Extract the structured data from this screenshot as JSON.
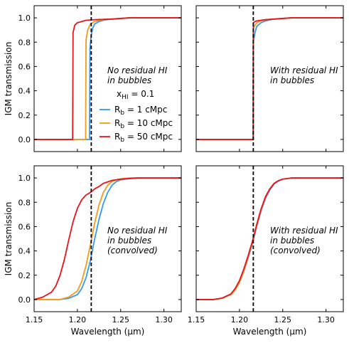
{
  "chart_data": [
    {
      "type": "line",
      "panel": "top-left",
      "xlim": [
        1.15,
        1.32
      ],
      "ylim": [
        -0.1,
        1.1
      ],
      "ylabel": "IGM transmission",
      "xlabel": "",
      "xticks": [],
      "yticks": [
        "0.0",
        "0.2",
        "0.4",
        "0.6",
        "0.8",
        "1.0"
      ],
      "vline_x": 1.216,
      "annotation": [
        "No residual HI",
        "in bubbles"
      ],
      "legend_title": "x",
      "legend_title_sub": "HI",
      "legend_title_value": " = 0.1",
      "legend_placement": "center-right",
      "series": [
        {
          "name": "1 cMpc",
          "label_prefix": "R",
          "label_sub": "b",
          "label_suffix": " = 1 cMpc",
          "color": "#3399ee",
          "x": [
            1.15,
            1.214,
            1.2145,
            1.216,
            1.218,
            1.22,
            1.225,
            1.23,
            1.24,
            1.26,
            1.32
          ],
          "y": [
            0.0,
            0.0,
            0.75,
            0.86,
            0.92,
            0.95,
            0.97,
            0.98,
            0.99,
            1.0,
            1.0
          ]
        },
        {
          "name": "10 cMpc",
          "label_prefix": "R",
          "label_sub": "b",
          "label_suffix": " = 10 cMpc",
          "color": "#f39a1c",
          "x": [
            1.15,
            1.2095,
            1.21,
            1.212,
            1.215,
            1.22,
            1.225,
            1.23,
            1.24,
            1.26,
            1.32
          ],
          "y": [
            0.0,
            0.0,
            0.82,
            0.9,
            0.95,
            0.97,
            0.98,
            0.985,
            0.99,
            1.0,
            1.0
          ]
        },
        {
          "name": "50 cMpc",
          "label_prefix": "R",
          "label_sub": "b",
          "label_suffix": " = 50 cMpc",
          "color": "#e8141c",
          "x": [
            1.15,
            1.1945,
            1.195,
            1.197,
            1.2,
            1.205,
            1.21,
            1.22,
            1.24,
            1.26,
            1.32
          ],
          "y": [
            0.0,
            0.0,
            0.88,
            0.94,
            0.96,
            0.97,
            0.98,
            0.985,
            0.99,
            1.0,
            1.0
          ]
        }
      ]
    },
    {
      "type": "line",
      "panel": "top-right",
      "xlim": [
        1.15,
        1.32
      ],
      "ylim": [
        -0.1,
        1.1
      ],
      "ylabel": "",
      "xlabel": "",
      "xticks": [],
      "yticks": [],
      "vline_x": 1.216,
      "annotation": [
        "With residual HI",
        "in bubbles"
      ],
      "series": [
        {
          "name": "1 cMpc",
          "color": "#3399ee",
          "x": [
            1.15,
            1.2159,
            1.216,
            1.218,
            1.22,
            1.225,
            1.23,
            1.24,
            1.26,
            1.32
          ],
          "y": [
            0.0,
            0.0,
            0.8,
            0.88,
            0.93,
            0.96,
            0.975,
            0.99,
            1.0,
            1.0
          ]
        },
        {
          "name": "10 cMpc",
          "color": "#f39a1c",
          "x": [
            1.15,
            1.2159,
            1.216,
            1.218,
            1.22,
            1.225,
            1.23,
            1.24,
            1.26,
            1.32
          ],
          "y": [
            0.0,
            0.0,
            0.91,
            0.94,
            0.96,
            0.975,
            0.985,
            0.99,
            1.0,
            1.0
          ]
        },
        {
          "name": "50 cMpc",
          "color": "#e8141c",
          "x": [
            1.15,
            1.2159,
            1.216,
            1.218,
            1.22,
            1.225,
            1.23,
            1.24,
            1.26,
            1.32
          ],
          "y": [
            0.0,
            0.0,
            0.96,
            0.97,
            0.975,
            0.98,
            0.985,
            0.99,
            1.0,
            1.0
          ]
        }
      ]
    },
    {
      "type": "line",
      "panel": "bottom-left",
      "xlim": [
        1.15,
        1.32
      ],
      "ylim": [
        -0.1,
        1.1
      ],
      "ylabel": "IGM transmission",
      "xlabel": "Wavelength (μm)",
      "xticks": [
        "1.15",
        "1.20",
        "1.25",
        "1.30"
      ],
      "yticks": [
        "0.0",
        "0.2",
        "0.4",
        "0.6",
        "0.8",
        "1.0"
      ],
      "vline_x": 1.216,
      "annotation": [
        "No residual HI",
        "in bubbles",
        "(convolved)"
      ],
      "series": [
        {
          "name": "1 cMpc",
          "color": "#3399ee",
          "x": [
            1.15,
            1.18,
            1.19,
            1.2,
            1.205,
            1.21,
            1.215,
            1.22,
            1.225,
            1.23,
            1.235,
            1.24,
            1.245,
            1.25,
            1.26,
            1.27,
            1.28,
            1.32
          ],
          "y": [
            0.0,
            0.0,
            0.01,
            0.04,
            0.09,
            0.18,
            0.32,
            0.5,
            0.66,
            0.79,
            0.88,
            0.94,
            0.97,
            0.985,
            0.995,
            1.0,
            1.0,
            1.0
          ]
        },
        {
          "name": "10 cMpc",
          "color": "#f39a1c",
          "x": [
            1.15,
            1.18,
            1.19,
            1.2,
            1.205,
            1.21,
            1.215,
            1.22,
            1.225,
            1.23,
            1.235,
            1.24,
            1.245,
            1.25,
            1.26,
            1.27,
            1.28,
            1.32
          ],
          "y": [
            0.0,
            0.0,
            0.02,
            0.07,
            0.15,
            0.28,
            0.45,
            0.63,
            0.78,
            0.88,
            0.94,
            0.97,
            0.985,
            0.993,
            1.0,
            1.0,
            1.0,
            1.0
          ]
        },
        {
          "name": "50 cMpc",
          "color": "#e8141c",
          "x": [
            1.15,
            1.16,
            1.17,
            1.175,
            1.18,
            1.185,
            1.19,
            1.195,
            1.2,
            1.205,
            1.21,
            1.215,
            1.22,
            1.225,
            1.23,
            1.24,
            1.25,
            1.27,
            1.32
          ],
          "y": [
            0.0,
            0.02,
            0.06,
            0.11,
            0.2,
            0.33,
            0.49,
            0.64,
            0.75,
            0.82,
            0.86,
            0.88,
            0.91,
            0.93,
            0.955,
            0.98,
            0.99,
            1.0,
            1.0
          ]
        }
      ]
    },
    {
      "type": "line",
      "panel": "bottom-right",
      "xlim": [
        1.15,
        1.32
      ],
      "ylim": [
        -0.1,
        1.1
      ],
      "ylabel": "",
      "xlabel": "Wavelength (μm)",
      "xticks": [
        "1.15",
        "1.20",
        "1.25",
        "1.30"
      ],
      "yticks": [],
      "vline_x": 1.216,
      "annotation": [
        "With residual HI",
        "in bubbles",
        "(convolved)"
      ],
      "series": [
        {
          "name": "1 cMpc",
          "color": "#3399ee",
          "x": [
            1.15,
            1.17,
            1.18,
            1.19,
            1.195,
            1.2,
            1.205,
            1.21,
            1.215,
            1.22,
            1.225,
            1.23,
            1.235,
            1.24,
            1.245,
            1.25,
            1.26,
            1.27,
            1.32
          ],
          "y": [
            0.0,
            0.0,
            0.01,
            0.04,
            0.08,
            0.14,
            0.23,
            0.34,
            0.46,
            0.6,
            0.73,
            0.83,
            0.9,
            0.95,
            0.975,
            0.99,
            1.0,
            1.0,
            1.0
          ]
        },
        {
          "name": "10 cMpc",
          "color": "#f39a1c",
          "x": [
            1.15,
            1.17,
            1.18,
            1.19,
            1.195,
            1.2,
            1.205,
            1.21,
            1.215,
            1.22,
            1.225,
            1.23,
            1.235,
            1.24,
            1.245,
            1.25,
            1.26,
            1.27,
            1.32
          ],
          "y": [
            0.0,
            0.0,
            0.01,
            0.04,
            0.08,
            0.14,
            0.235,
            0.35,
            0.47,
            0.61,
            0.74,
            0.84,
            0.91,
            0.955,
            0.978,
            0.99,
            1.0,
            1.0,
            1.0
          ]
        },
        {
          "name": "50 cMpc",
          "color": "#e8141c",
          "x": [
            1.15,
            1.17,
            1.18,
            1.19,
            1.195,
            1.2,
            1.205,
            1.21,
            1.215,
            1.22,
            1.225,
            1.23,
            1.235,
            1.24,
            1.245,
            1.25,
            1.26,
            1.27,
            1.32
          ],
          "y": [
            0.0,
            0.0,
            0.012,
            0.045,
            0.09,
            0.155,
            0.25,
            0.36,
            0.48,
            0.62,
            0.745,
            0.845,
            0.91,
            0.955,
            0.978,
            0.99,
            1.0,
            1.0,
            1.0
          ]
        }
      ]
    }
  ]
}
